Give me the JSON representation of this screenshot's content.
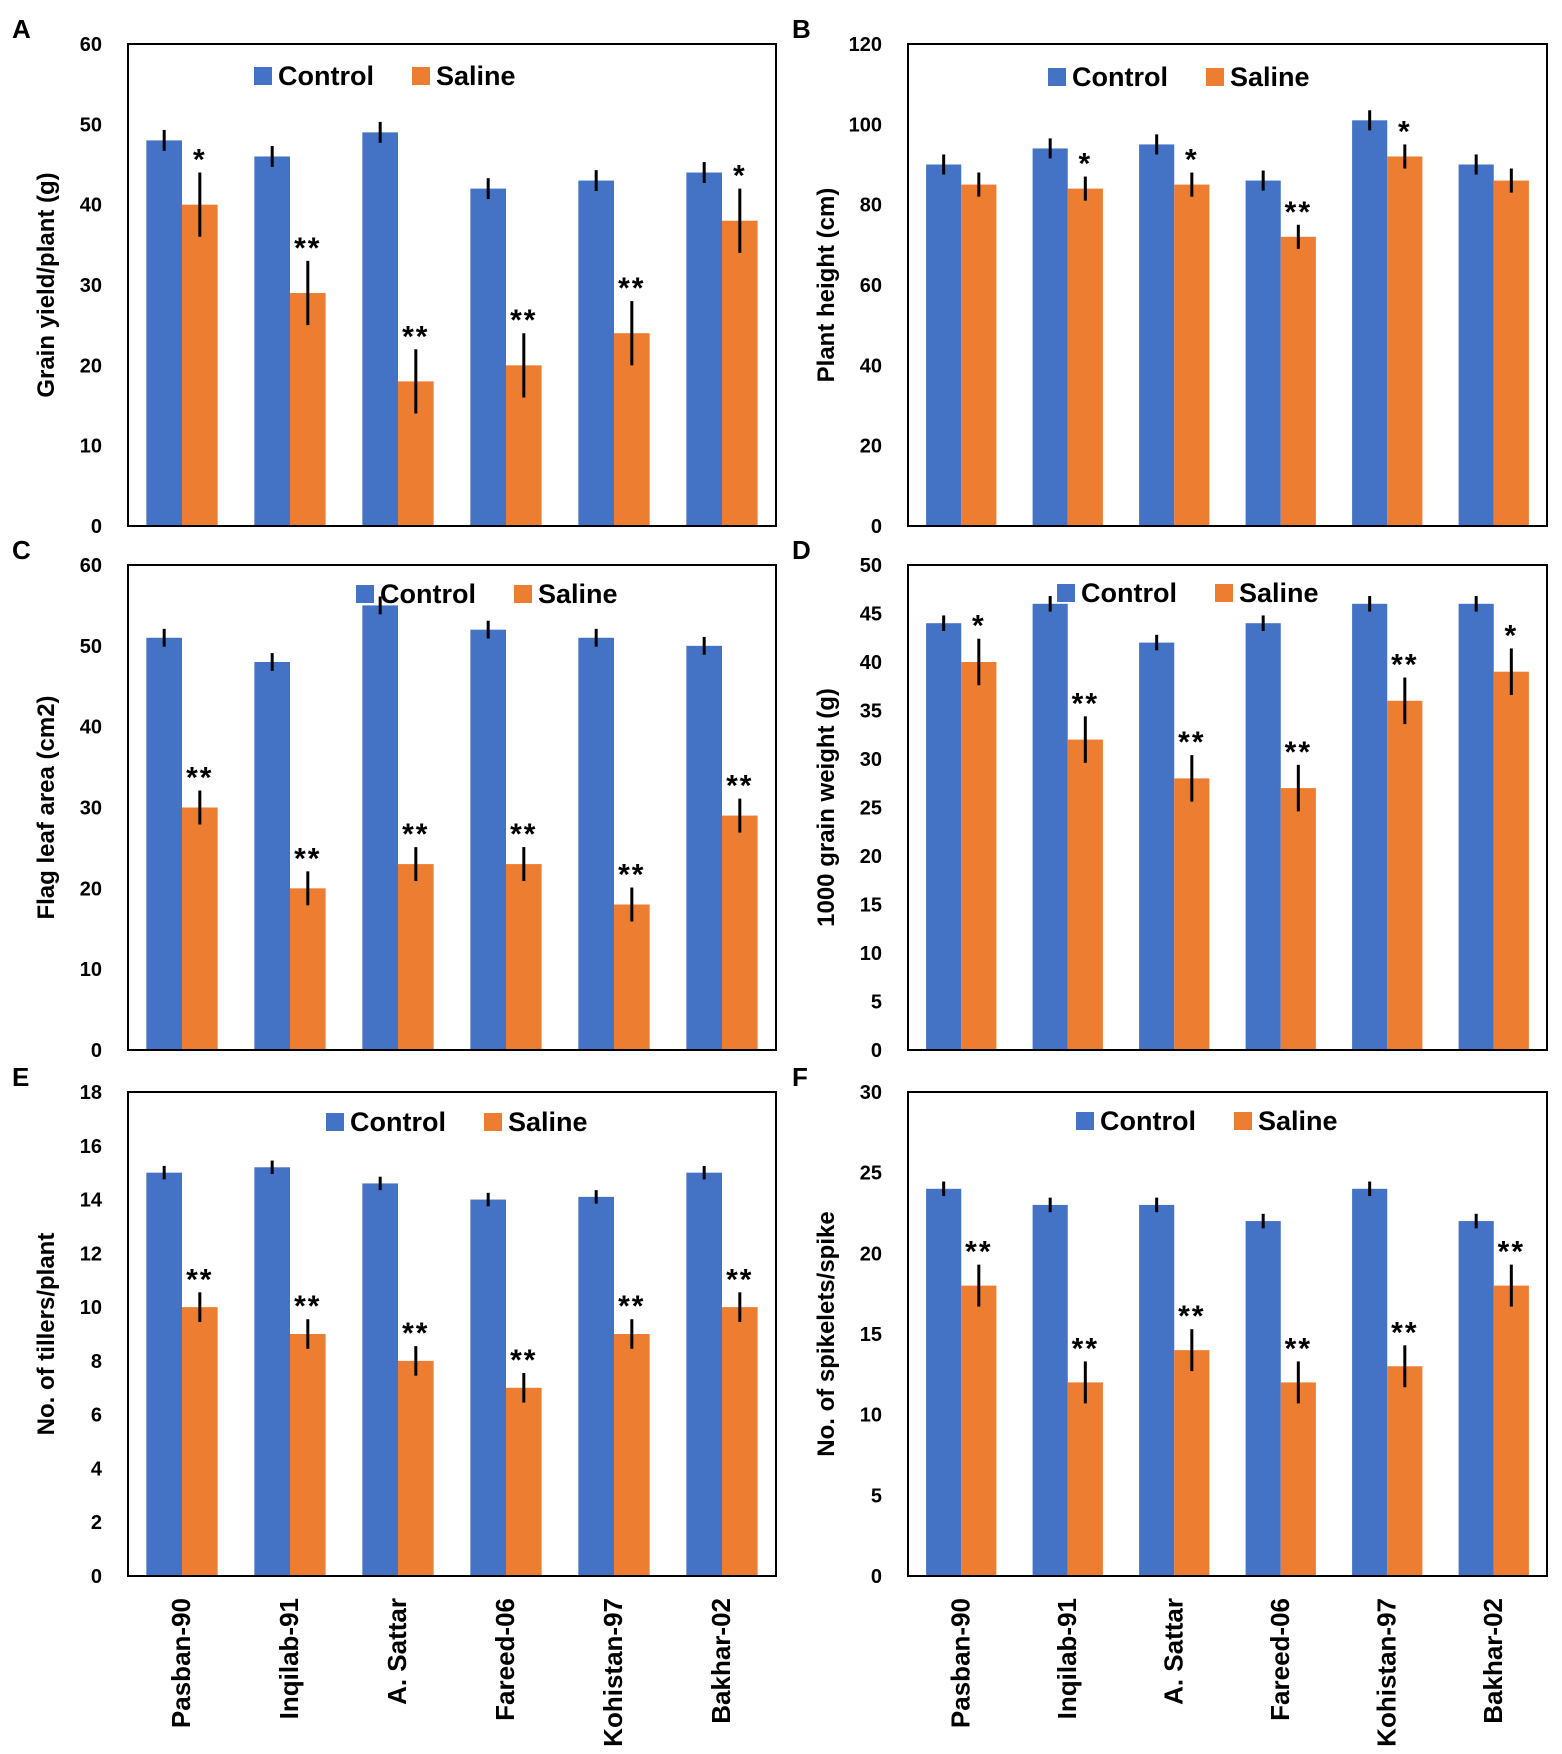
{
  "figure": {
    "categories": [
      "Pasban-90",
      "Inqilab-91",
      "A. Sattar",
      "Fareed-06",
      "Kohistan-97",
      "Bakhar-02"
    ],
    "colors": {
      "control": "#4472C4",
      "saline": "#ED7D31",
      "error": "#000000",
      "axis": "#000000"
    }
  },
  "chart_data": [
    {
      "type": "bar",
      "panel": "A",
      "title": "",
      "xlabel": "",
      "ylabel": "Grain yield/plant (g)",
      "ylim": [
        0,
        60
      ],
      "yticks": [
        0,
        10,
        20,
        30,
        40,
        50,
        60
      ],
      "categories": [
        "Pasban-90",
        "Inqilab-91",
        "A. Sattar",
        "Fareed-06",
        "Kohistan-97",
        "Bakhar-02"
      ],
      "legend": {
        "position": "top-center",
        "entries": [
          "Control",
          "Saline"
        ]
      },
      "series": [
        {
          "name": "Control",
          "color": "#4472C4",
          "values": [
            48,
            46,
            49,
            42,
            43,
            44
          ],
          "errors": [
            1.3,
            1.3,
            1.3,
            1.3,
            1.3,
            1.3
          ]
        },
        {
          "name": "Saline",
          "color": "#ED7D31",
          "values": [
            40,
            29,
            18,
            20,
            24,
            38
          ],
          "errors": [
            4,
            4,
            4,
            4,
            4,
            4
          ],
          "significance": [
            "*",
            "**",
            "**",
            "**",
            "**",
            "*"
          ]
        }
      ]
    },
    {
      "type": "bar",
      "panel": "B",
      "title": "",
      "xlabel": "",
      "ylabel": "Plant height (cm)",
      "ylim": [
        0,
        120
      ],
      "yticks": [
        0,
        20,
        40,
        60,
        80,
        100,
        120
      ],
      "categories": [
        "Pasban-90",
        "Inqilab-91",
        "A. Sattar",
        "Fareed-06",
        "Kohistan-97",
        "Bakhar-02"
      ],
      "legend": {
        "position": "top-center",
        "entries": [
          "Control",
          "Saline"
        ]
      },
      "series": [
        {
          "name": "Control",
          "color": "#4472C4",
          "values": [
            90,
            94,
            95,
            86,
            101,
            90
          ],
          "errors": [
            2.5,
            2.5,
            2.5,
            2.5,
            2.5,
            2.5
          ]
        },
        {
          "name": "Saline",
          "color": "#ED7D31",
          "values": [
            85,
            84,
            85,
            72,
            92,
            86
          ],
          "errors": [
            3,
            3,
            3,
            3,
            3,
            3
          ],
          "significance": [
            "",
            "*",
            "*",
            "**",
            "*",
            ""
          ]
        }
      ]
    },
    {
      "type": "bar",
      "panel": "C",
      "title": "",
      "xlabel": "",
      "ylabel": "Flag leaf area (cm2)",
      "ylim": [
        0,
        60
      ],
      "yticks": [
        0,
        10,
        20,
        30,
        40,
        50,
        60
      ],
      "categories": [
        "Pasban-90",
        "Inqilab-91",
        "A. Sattar",
        "Fareed-06",
        "Kohistan-97",
        "Bakhar-02"
      ],
      "legend": {
        "position": "top-right",
        "entries": [
          "Control",
          "Saline"
        ]
      },
      "series": [
        {
          "name": "Control",
          "color": "#4472C4",
          "values": [
            51,
            48,
            55,
            52,
            51,
            50
          ],
          "errors": [
            1.1,
            1.1,
            1.1,
            1.1,
            1.1,
            1.1
          ]
        },
        {
          "name": "Saline",
          "color": "#ED7D31",
          "values": [
            30,
            20,
            23,
            23,
            18,
            29
          ],
          "errors": [
            2.1,
            2.1,
            2.1,
            2.1,
            2.1,
            2.1
          ],
          "significance": [
            "**",
            "**",
            "**",
            "**",
            "**",
            "**"
          ]
        }
      ]
    },
    {
      "type": "bar",
      "panel": "D",
      "title": "",
      "xlabel": "",
      "ylabel": "1000 grain weight (g)",
      "ylim": [
        0,
        50
      ],
      "yticks": [
        0,
        5,
        10,
        15,
        20,
        25,
        30,
        35,
        40,
        45,
        50
      ],
      "categories": [
        "Pasban-90",
        "Inqilab-91",
        "A. Sattar",
        "Fareed-06",
        "Kohistan-97",
        "Bakhar-02"
      ],
      "legend": {
        "position": "top-right",
        "entries": [
          "Control",
          "Saline"
        ]
      },
      "series": [
        {
          "name": "Control",
          "color": "#4472C4",
          "values": [
            44,
            46,
            42,
            44,
            46,
            46
          ],
          "errors": [
            0.8,
            0.8,
            0.8,
            0.8,
            0.8,
            0.8
          ]
        },
        {
          "name": "Saline",
          "color": "#ED7D31",
          "values": [
            40,
            32,
            28,
            27,
            36,
            39
          ],
          "errors": [
            2.4,
            2.4,
            2.4,
            2.4,
            2.4,
            2.4
          ],
          "significance": [
            "*",
            "**",
            "**",
            "**",
            "**",
            "*"
          ]
        }
      ]
    },
    {
      "type": "bar",
      "panel": "E",
      "title": "",
      "xlabel": "",
      "ylabel": "No. of tillers/plant",
      "ylim": [
        0,
        18
      ],
      "yticks": [
        0,
        2,
        4,
        6,
        8,
        10,
        12,
        14,
        16,
        18
      ],
      "categories": [
        "Pasban-90",
        "Inqilab-91",
        "A. Sattar",
        "Fareed-06",
        "Kohistan-97",
        "Bakhar-02"
      ],
      "legend": {
        "position": "top-center",
        "entries": [
          "Control",
          "Saline"
        ]
      },
      "series": [
        {
          "name": "Control",
          "color": "#4472C4",
          "values": [
            15,
            15.2,
            14.6,
            14,
            14.1,
            15
          ],
          "errors": [
            0.25,
            0.25,
            0.25,
            0.25,
            0.25,
            0.25
          ]
        },
        {
          "name": "Saline",
          "color": "#ED7D31",
          "values": [
            10,
            9,
            8,
            7,
            9,
            10
          ],
          "errors": [
            0.55,
            0.55,
            0.55,
            0.55,
            0.55,
            0.55
          ],
          "significance": [
            "**",
            "**",
            "**",
            "**",
            "**",
            "**"
          ]
        }
      ]
    },
    {
      "type": "bar",
      "panel": "F",
      "title": "",
      "xlabel": "",
      "ylabel": "No. of spikelets/spike",
      "ylim": [
        0,
        30
      ],
      "yticks": [
        0,
        5,
        10,
        15,
        20,
        25,
        30
      ],
      "categories": [
        "Pasban-90",
        "Inqilab-91",
        "A. Sattar",
        "Fareed-06",
        "Kohistan-97",
        "Bakhar-02"
      ],
      "legend": {
        "position": "top-right",
        "entries": [
          "Control",
          "Saline"
        ]
      },
      "series": [
        {
          "name": "Control",
          "color": "#4472C4",
          "values": [
            24,
            23,
            23,
            22,
            24,
            22
          ],
          "errors": [
            0.45,
            0.45,
            0.45,
            0.45,
            0.45,
            0.45
          ]
        },
        {
          "name": "Saline",
          "color": "#ED7D31",
          "values": [
            18,
            12,
            14,
            12,
            13,
            18
          ],
          "errors": [
            1.3,
            1.3,
            1.3,
            1.3,
            1.3,
            1.3
          ],
          "significance": [
            "**",
            "**",
            "**",
            "**",
            "**",
            "**"
          ]
        }
      ]
    }
  ]
}
